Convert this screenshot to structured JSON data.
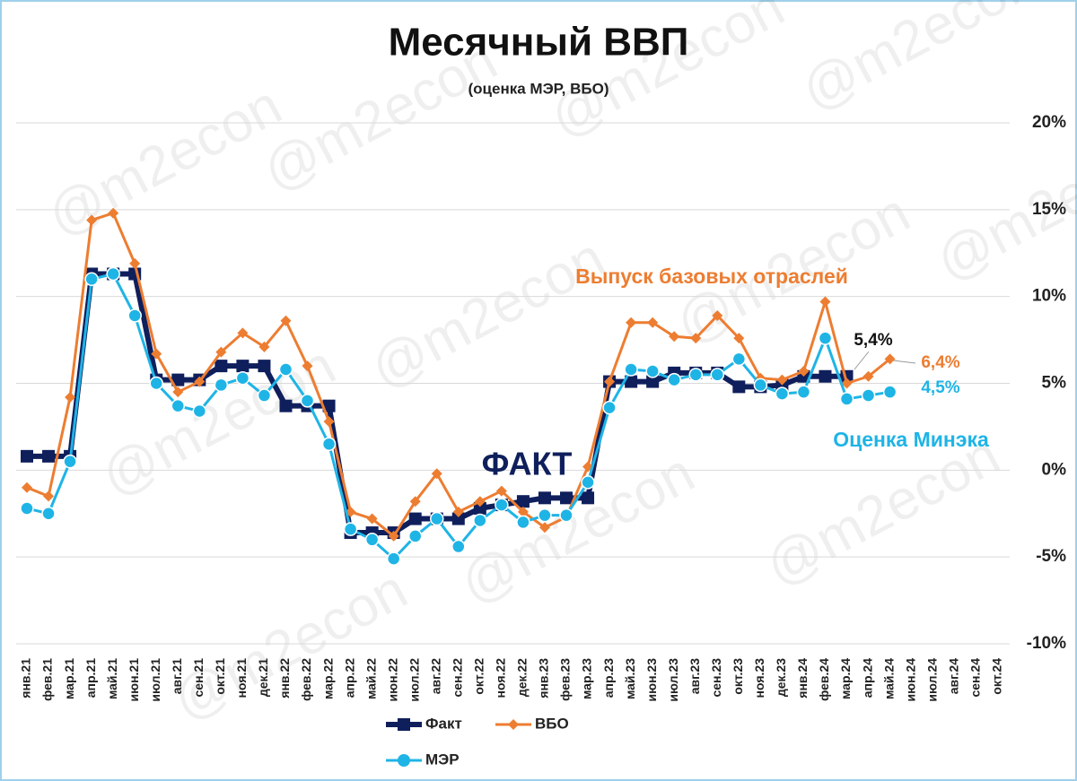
{
  "chart_data": {
    "type": "line",
    "title": "Месячный ВВП",
    "subtitle": "(оценка МЭР, ВБО)",
    "watermark": "@m2econ",
    "categories": [
      "янв.21",
      "фев.21",
      "мар.21",
      "апр.21",
      "май.21",
      "июн.21",
      "июл.21",
      "авг.21",
      "сен.21",
      "окт.21",
      "ноя.21",
      "дек.21",
      "янв.22",
      "фев.22",
      "мар.22",
      "апр.22",
      "май.22",
      "июн.22",
      "июл.22",
      "авг.22",
      "сен.22",
      "окт.22",
      "ноя.22",
      "дек.22",
      "янв.23",
      "фев.23",
      "мар.23",
      "апр.23",
      "май.23",
      "июн.23",
      "июл.23",
      "авг.23",
      "сен.23",
      "окт.23",
      "ноя.23",
      "дек.23",
      "янв.24",
      "фев.24",
      "мар.24",
      "апр.24",
      "май.24",
      "июн.24",
      "июл.24",
      "авг.24",
      "сен.24",
      "окт.24"
    ],
    "series": [
      {
        "name": "Факт",
        "color": "#0f1f5c",
        "marker": "square",
        "values": [
          0.8,
          0.8,
          0.8,
          11.3,
          11.3,
          11.3,
          5.2,
          5.2,
          5.2,
          6.0,
          6.0,
          6.0,
          3.7,
          3.7,
          3.7,
          -3.6,
          -3.6,
          -3.6,
          -2.8,
          -2.8,
          -2.8,
          -2.2,
          -2.0,
          -1.8,
          -1.6,
          -1.6,
          -1.6,
          5.1,
          5.1,
          5.1,
          5.6,
          5.6,
          5.6,
          4.8,
          4.8,
          4.9,
          5.4,
          5.4,
          5.4,
          null,
          null,
          null,
          null,
          null,
          null,
          null
        ]
      },
      {
        "name": "ВБО",
        "color": "#ed7d31",
        "marker": "diamond",
        "values": [
          -1.0,
          -1.5,
          4.2,
          14.4,
          14.8,
          11.9,
          6.7,
          4.5,
          5.1,
          6.8,
          7.9,
          7.1,
          8.6,
          6.0,
          2.8,
          -2.4,
          -2.8,
          -3.8,
          -1.8,
          -0.2,
          -2.4,
          -1.8,
          -1.2,
          -2.4,
          -3.3,
          -2.7,
          0.2,
          5.1,
          8.5,
          8.5,
          7.7,
          7.6,
          8.9,
          7.6,
          5.3,
          5.2,
          5.7,
          9.7,
          5.0,
          5.4,
          6.4,
          null,
          null,
          null,
          null,
          null
        ]
      },
      {
        "name": "МЭР",
        "color": "#1fb4e6",
        "marker": "circle",
        "values": [
          -2.2,
          -2.5,
          0.5,
          11.0,
          11.3,
          8.9,
          5.0,
          3.7,
          3.4,
          4.9,
          5.3,
          4.3,
          5.8,
          4.0,
          1.5,
          -3.4,
          -4.0,
          -5.1,
          -3.8,
          -2.8,
          -4.4,
          -2.9,
          -2.0,
          -3.0,
          -2.6,
          -2.6,
          -0.7,
          3.6,
          5.8,
          5.7,
          5.2,
          5.5,
          5.5,
          6.4,
          4.9,
          4.4,
          4.5,
          7.6,
          4.1,
          4.3,
          4.5,
          null,
          null,
          null,
          null,
          null
        ]
      }
    ],
    "ylim": [
      -10,
      20
    ],
    "yticks": [
      {
        "value": -10,
        "label": "-10%"
      },
      {
        "value": -5,
        "label": "-5%"
      },
      {
        "value": 0,
        "label": "0%"
      },
      {
        "value": 5,
        "label": "5%"
      },
      {
        "value": 10,
        "label": "10%"
      },
      {
        "value": 15,
        "label": "15%"
      },
      {
        "value": 20,
        "label": "20%"
      }
    ],
    "grid": true,
    "annotations": [
      {
        "text": "Выпуск базовых отраслей",
        "color": "#ed7d31"
      },
      {
        "text": "Оценка Минэка",
        "color": "#1fb4e6"
      },
      {
        "text": "ФАКТ",
        "color": "#0f1f5c"
      },
      {
        "text": "5,4%",
        "color": "#111111"
      },
      {
        "text": "6,4%",
        "color": "#ed7d31"
      },
      {
        "text": "4,5%",
        "color": "#1fb4e6"
      }
    ]
  }
}
